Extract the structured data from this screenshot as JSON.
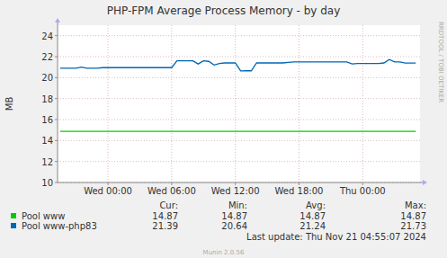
{
  "chart_data": {
    "type": "line",
    "title": "PHP-FPM Average Process Memory - by day",
    "y_label": "MB",
    "side_text": "RRDTOOL / TOBI OETIKER",
    "last_update": "Last update: Thu Nov 21 04:55:07 2024",
    "footer": "Munin 2.0.56",
    "stat_labels": [
      "Cur:",
      "Min:",
      "Avg:",
      "Max:"
    ],
    "grid": true,
    "legend": "bottom",
    "xlim": [
      -4.75,
      29.4
    ],
    "xticks": [
      {
        "value": 0,
        "label": "Wed 00:00"
      },
      {
        "value": 6,
        "label": "Wed 06:00"
      },
      {
        "value": 12,
        "label": "Wed 12:00"
      },
      {
        "value": 18,
        "label": "Wed 18:00"
      },
      {
        "value": 24,
        "label": "Thu 00:00"
      }
    ],
    "ylim": [
      10,
      25
    ],
    "yticks": [
      10,
      12,
      14,
      16,
      18,
      20,
      22,
      24
    ],
    "x": [
      -4.5,
      -4,
      -3.5,
      -3,
      -2.5,
      -2,
      -1.5,
      -1,
      -0.5,
      0,
      0.5,
      1,
      1.5,
      2,
      2.5,
      3,
      3.5,
      4,
      4.5,
      5,
      5.5,
      6,
      6.5,
      7,
      7.5,
      8,
      8.5,
      9,
      9.5,
      10,
      10.5,
      11,
      11.5,
      12,
      12.5,
      13,
      13.5,
      14,
      14.5,
      15,
      15.5,
      16,
      16.5,
      17,
      17.5,
      18,
      18.5,
      19,
      19.5,
      20,
      20.5,
      21,
      21.5,
      22,
      22.5,
      23,
      23.5,
      24,
      24.5,
      25,
      25.5,
      26,
      26.5,
      27,
      27.5,
      28,
      28.5,
      29
    ],
    "series": [
      {
        "name": "Pool www",
        "color": "#00cc00",
        "cur": 14.87,
        "min": 14.87,
        "avg": 14.87,
        "max": 14.87,
        "values": [
          14.87,
          14.87,
          14.87,
          14.87,
          14.87,
          14.87,
          14.87,
          14.87,
          14.87,
          14.87,
          14.87,
          14.87,
          14.87,
          14.87,
          14.87,
          14.87,
          14.87,
          14.87,
          14.87,
          14.87,
          14.87,
          14.87,
          14.87,
          14.87,
          14.87,
          14.87,
          14.87,
          14.87,
          14.87,
          14.87,
          14.87,
          14.87,
          14.87,
          14.87,
          14.87,
          14.87,
          14.87,
          14.87,
          14.87,
          14.87,
          14.87,
          14.87,
          14.87,
          14.87,
          14.87,
          14.87,
          14.87,
          14.87,
          14.87,
          14.87,
          14.87,
          14.87,
          14.87,
          14.87,
          14.87,
          14.87,
          14.87,
          14.87,
          14.87,
          14.87,
          14.87,
          14.87,
          14.87,
          14.87,
          14.87,
          14.87,
          14.87,
          14.87
        ]
      },
      {
        "name": "Pool www-php83",
        "color": "#0066b3",
        "cur": 21.39,
        "min": 20.64,
        "avg": 21.24,
        "max": 21.73,
        "values": [
          20.9,
          20.9,
          20.9,
          20.9,
          21.0,
          20.9,
          20.9,
          20.9,
          20.95,
          20.95,
          20.95,
          20.95,
          20.95,
          20.95,
          20.95,
          20.95,
          20.95,
          20.95,
          20.95,
          20.95,
          20.95,
          20.95,
          21.6,
          21.6,
          21.6,
          21.6,
          21.3,
          21.6,
          21.55,
          21.2,
          21.35,
          21.4,
          21.4,
          21.4,
          20.64,
          20.65,
          20.65,
          21.4,
          21.4,
          21.4,
          21.4,
          21.4,
          21.4,
          21.45,
          21.5,
          21.5,
          21.5,
          21.5,
          21.5,
          21.5,
          21.5,
          21.5,
          21.5,
          21.5,
          21.5,
          21.3,
          21.35,
          21.35,
          21.35,
          21.35,
          21.35,
          21.4,
          21.73,
          21.5,
          21.5,
          21.39,
          21.39,
          21.39
        ]
      }
    ]
  }
}
